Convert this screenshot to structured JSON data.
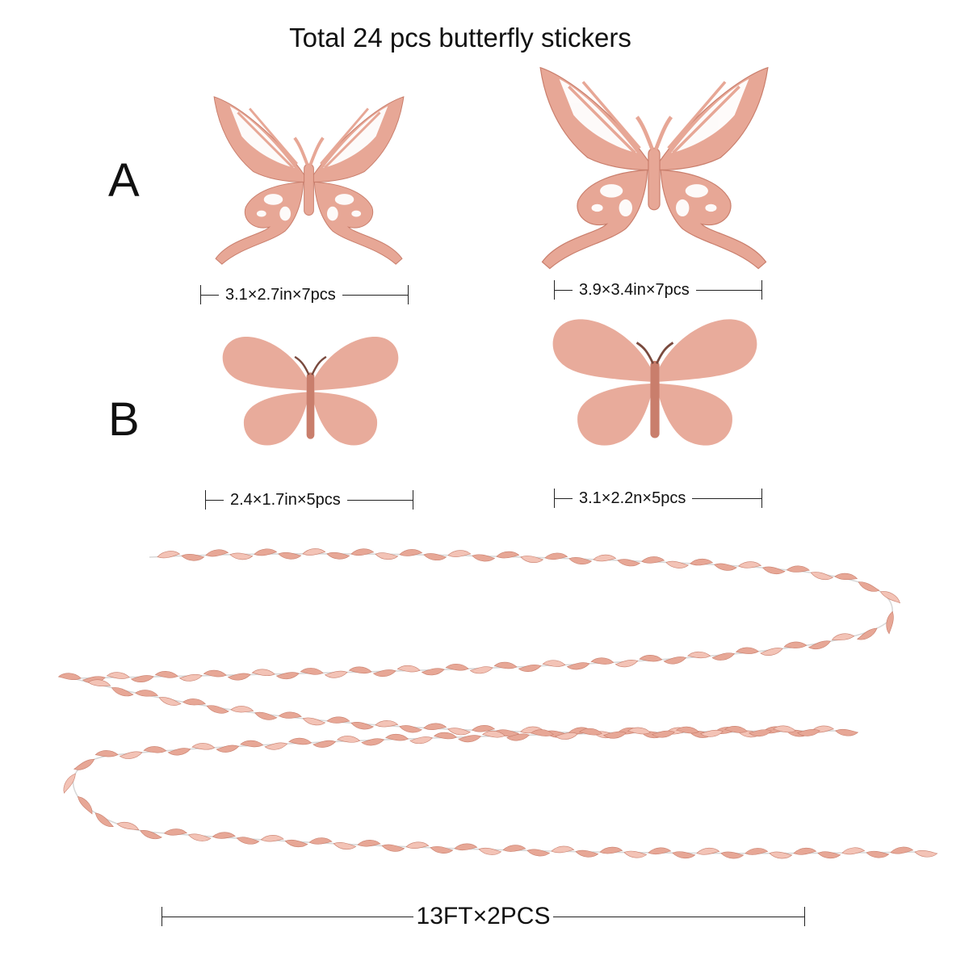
{
  "title": "Total 24 pcs butterfly stickers",
  "rows": [
    {
      "label": "A"
    },
    {
      "label": "B"
    }
  ],
  "stickers": [
    {
      "style": "hollow",
      "size_label": "3.1×2.7in×7pcs"
    },
    {
      "style": "hollow",
      "size_label": "3.9×3.4in×7pcs"
    },
    {
      "style": "solid",
      "size_label": "2.4×1.7in×5pcs"
    },
    {
      "style": "solid",
      "size_label": "3.1×2.2n×5pcs"
    }
  ],
  "garland": {
    "length_label": "13FT×2PCS"
  },
  "colors": {
    "rose_gold": "#e7a796",
    "rose_gold_dark": "#c97e6c",
    "rose_light": "#f3c3b6",
    "string": "#d8d8d8",
    "text": "#111111"
  }
}
